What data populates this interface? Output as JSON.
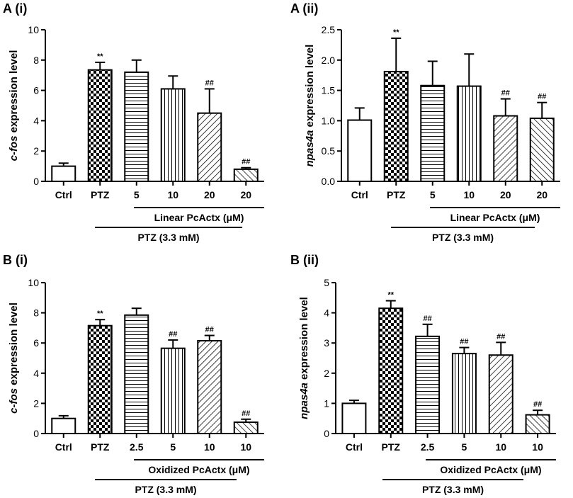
{
  "chart_data": [
    {
      "panel": "A (i)",
      "type": "bar",
      "ylabel_gene": "c-fos",
      "ylabel_rest": " expression level",
      "ylim": [
        0,
        10
      ],
      "yticks": [
        0,
        2,
        4,
        6,
        8,
        10
      ],
      "categories": [
        "Ctrl",
        "PTZ",
        "5",
        "10",
        "20",
        "20"
      ],
      "values": [
        1.0,
        7.35,
        7.2,
        6.1,
        4.5,
        0.8
      ],
      "errors": [
        0.2,
        0.5,
        0.8,
        0.85,
        1.6,
        0.1
      ],
      "patterns": [
        "none",
        "checker",
        "hlines",
        "vlines",
        "diag-r",
        "diag-l"
      ],
      "significance": [
        "",
        "**",
        "",
        "",
        "##",
        "##"
      ],
      "bracket_inner": "Linear PcActx (μM)",
      "bracket_outer": "PTZ (3.3 mM)"
    },
    {
      "panel": "A (ii)",
      "type": "bar",
      "ylabel_gene": "npas4a",
      "ylabel_rest": " expression level",
      "ylim": [
        0,
        2.5
      ],
      "yticks": [
        "0.0",
        "0.5",
        "1.0",
        "1.5",
        "2.0",
        "2.5"
      ],
      "categories": [
        "Ctrl",
        "PTZ",
        "5",
        "10",
        "20",
        "20"
      ],
      "values": [
        1.01,
        1.81,
        1.58,
        1.57,
        1.08,
        1.04
      ],
      "errors": [
        0.2,
        0.55,
        0.4,
        0.53,
        0.28,
        0.26
      ],
      "patterns": [
        "none",
        "checker",
        "hlines",
        "vlines",
        "diag-r",
        "diag-l"
      ],
      "significance": [
        "",
        "**",
        "",
        "",
        "##",
        "##"
      ],
      "bracket_inner": "Linear PcActx (μM)",
      "bracket_outer": "PTZ (3.3 mM)"
    },
    {
      "panel": "B (i)",
      "type": "bar",
      "ylabel_gene": "c-fos",
      "ylabel_rest": " expression level",
      "ylim": [
        0,
        10
      ],
      "yticks": [
        0,
        2,
        4,
        6,
        8,
        10
      ],
      "categories": [
        "Ctrl",
        "PTZ",
        "2.5",
        "5",
        "10",
        "10"
      ],
      "values": [
        1.0,
        7.15,
        7.85,
        5.65,
        6.15,
        0.75
      ],
      "errors": [
        0.18,
        0.4,
        0.45,
        0.55,
        0.35,
        0.2
      ],
      "patterns": [
        "none",
        "checker",
        "hlines",
        "vlines",
        "diag-r",
        "diag-l"
      ],
      "significance": [
        "",
        "**",
        "",
        "##",
        "##",
        "##"
      ],
      "bracket_inner": "Oxidized PcActx (μM)",
      "bracket_outer": "PTZ (3.3 mM)"
    },
    {
      "panel": "B (ii)",
      "type": "bar",
      "ylabel_gene": "npas4a",
      "ylabel_rest": " expression level",
      "ylim": [
        0,
        5
      ],
      "yticks": [
        0,
        1,
        2,
        3,
        4,
        5
      ],
      "categories": [
        "Ctrl",
        "PTZ",
        "2.5",
        "5",
        "10",
        "10"
      ],
      "values": [
        1.0,
        4.15,
        3.22,
        2.65,
        2.6,
        0.62
      ],
      "errors": [
        0.1,
        0.25,
        0.4,
        0.2,
        0.42,
        0.15
      ],
      "patterns": [
        "none",
        "checker",
        "hlines",
        "vlines",
        "diag-r",
        "diag-l"
      ],
      "significance": [
        "",
        "**",
        "##",
        "##",
        "##",
        "##"
      ],
      "bracket_inner": "Oxidized PcActx (μM)",
      "bracket_outer": "PTZ (3.3 mM)"
    }
  ]
}
